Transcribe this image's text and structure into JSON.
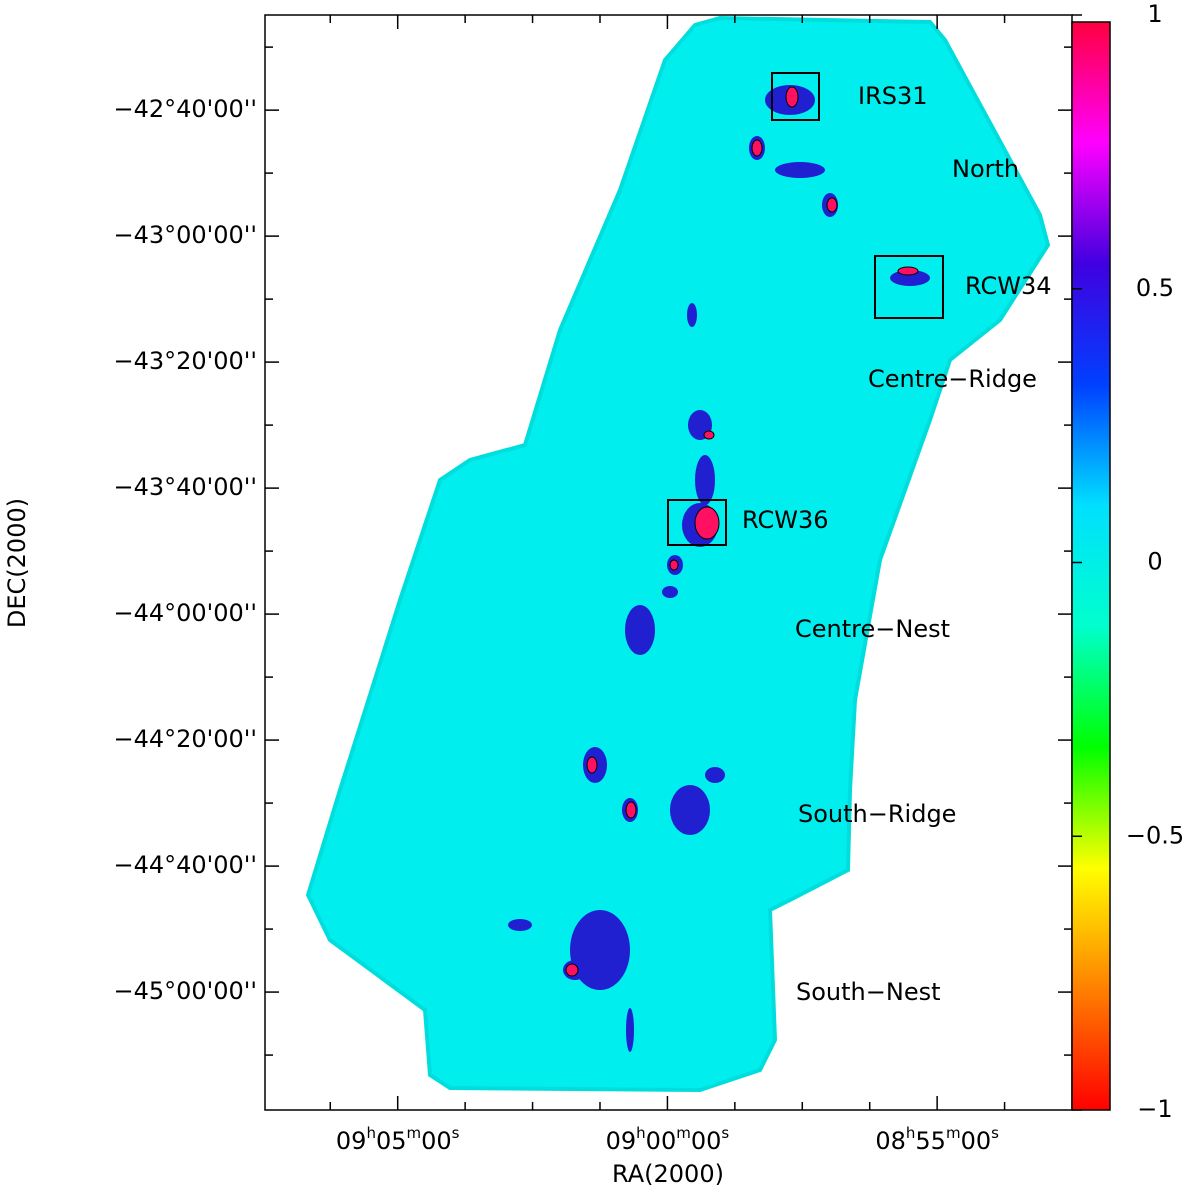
{
  "chart_data": {
    "type": "image",
    "xlabel": "RA(2000)",
    "ylabel": "DEC(2000)",
    "xlim": [
      547.46,
      532.5
    ],
    "ylim": [
      -45.312,
      -42.415
    ],
    "xticks": [
      {
        "value": 545,
        "label": "09h05m00s"
      },
      {
        "value": 540,
        "label": "09h00m00s"
      },
      {
        "value": 535,
        "label": "08h55m00s"
      }
    ],
    "xminorticks": [
      546.25,
      543.75,
      542.5,
      541.25,
      538.75,
      537.5,
      536.25,
      533.75
    ],
    "yticks": [
      {
        "value": -42.6667,
        "label": "−42°40'00''"
      },
      {
        "value": -43,
        "label": "−43°00'00''"
      },
      {
        "value": -43.3333,
        "label": "−43°20'00''"
      },
      {
        "value": -43.6667,
        "label": "−43°40'00''"
      },
      {
        "value": -44,
        "label": "−44°00'00''"
      },
      {
        "value": -44.3333,
        "label": "−44°20'00''"
      },
      {
        "value": -44.6667,
        "label": "−44°40'00''"
      },
      {
        "value": -45,
        "label": "−45°00'00''"
      }
    ],
    "yminorticks": [
      -42.5,
      -42.8333,
      -43.1667,
      -43.5,
      -43.8333,
      -44.1667,
      -44.5,
      -44.8333,
      -45.1667
    ],
    "colorbar": {
      "lim": [
        -1,
        1
      ],
      "ticks": [
        {
          "value": -1,
          "label": "−1"
        },
        {
          "value": -0.5,
          "label": "−0.5"
        },
        0,
        0.5,
        1
      ],
      "colors": [
        "#ff0000",
        "#ff8000",
        "#ffff00",
        "#00ff00",
        "#00ffcc",
        "#00e0ff",
        "#0040ff",
        "#4000e0",
        "#ff00ff",
        "#ff0040"
      ]
    },
    "annotations": [
      "IRS31",
      "North",
      "RCW34",
      "Centre−Ridge",
      "RCW36",
      "Centre−Nest",
      "South−Ridge",
      "South−Nest"
    ]
  }
}
